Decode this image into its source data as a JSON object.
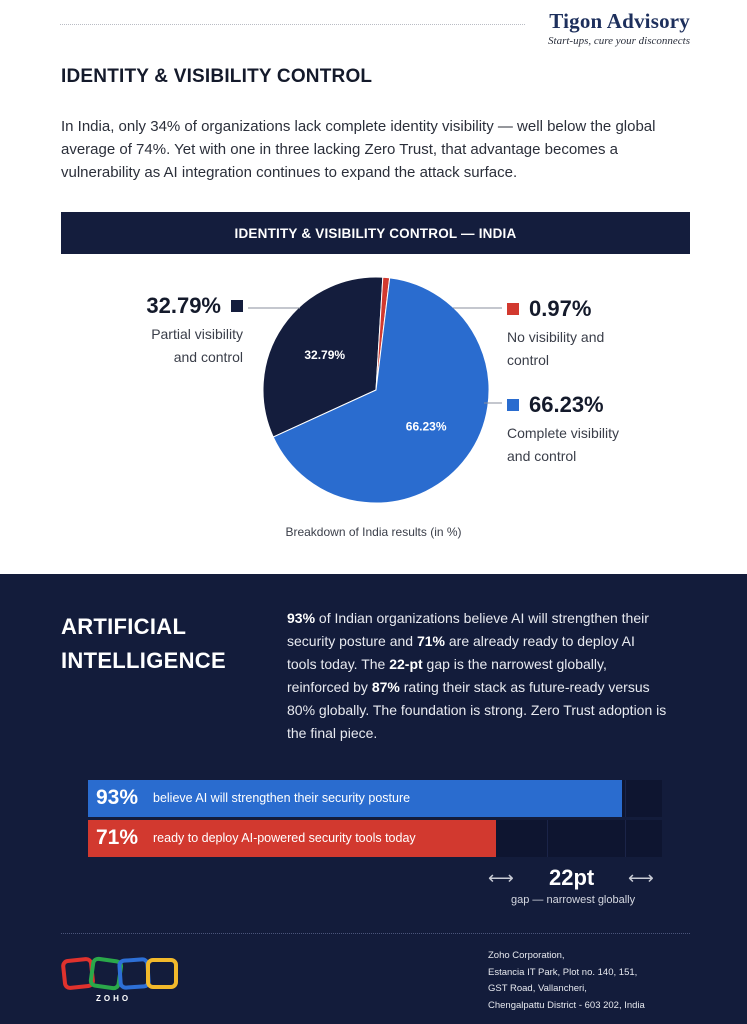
{
  "brand": {
    "name": "Tigon Advisory",
    "tagline": "Start-ups, cure your disconnects"
  },
  "section": {
    "title": "IDENTITY & VISIBILITY CONTROL",
    "intro": "In India, only 34% of organizations lack complete identity visibility — well below the global average of 74%. Yet with one in three lacking Zero Trust, that advantage becomes a vulnerability as AI integration continues to expand the attack surface."
  },
  "chart_data": [
    {
      "type": "pie",
      "title": "IDENTITY & VISIBILITY CONTROL — INDIA",
      "caption": "Breakdown of India results (in %)",
      "slices": [
        {
          "value": 32.79,
          "value_label": "32.79%",
          "desc": [
            "Partial visibility",
            "and control"
          ],
          "color": "#141d3d",
          "inner_label": "32.79%"
        },
        {
          "value": 0.97,
          "value_label": "0.97%",
          "desc": [
            "No visibility and",
            "control"
          ],
          "color": "#d2392f",
          "inner_label": ""
        },
        {
          "value": 66.23,
          "value_label": "66.23%",
          "desc": [
            "Complete visibility",
            "and control"
          ],
          "color": "#2a6ccf",
          "inner_label": "66.23%"
        }
      ]
    },
    {
      "type": "bar",
      "orientation": "horizontal",
      "xlim": [
        0,
        100
      ],
      "series": [
        {
          "pct": "93%",
          "value": 93,
          "label": "believe AI will strengthen their security posture",
          "color": "#2a6ccf"
        },
        {
          "pct": "71%",
          "value": 71,
          "label": "ready to deploy AI-powered security tools today",
          "color": "#d2392f"
        }
      ],
      "gap": {
        "value": "22pt",
        "caption": "gap — narrowest globally"
      }
    }
  ],
  "ai": {
    "title_line1": "ARTIFICIAL",
    "title_line2": "INTELLIGENCE",
    "body": {
      "s1": "93%",
      "t1": " of Indian organizations believe AI will strengthen their security posture and ",
      "s2": "71%",
      "t2": " are already ready to deploy AI tools today. The ",
      "s3": "22-pt",
      "t3": " gap is the narrowest globally, reinforced by ",
      "s4": "87%",
      "t4": " rating their stack as future-ready versus 80% globally. The foundation is strong. Zero Trust adoption is the final piece."
    },
    "arrow_left": "⟷",
    "arrow_right": "⟷"
  },
  "footer": {
    "logo_text": "ZOHO",
    "logo_colors": [
      "#e0322d",
      "#2aa84a",
      "#2d6fd6",
      "#f2b92b"
    ],
    "address": [
      "Zoho Corporation,",
      "Estancia IT Park, Plot no. 140, 151,",
      "GST Road, Vallancheri,",
      "Chengalpattu District - 603 202, India"
    ]
  }
}
